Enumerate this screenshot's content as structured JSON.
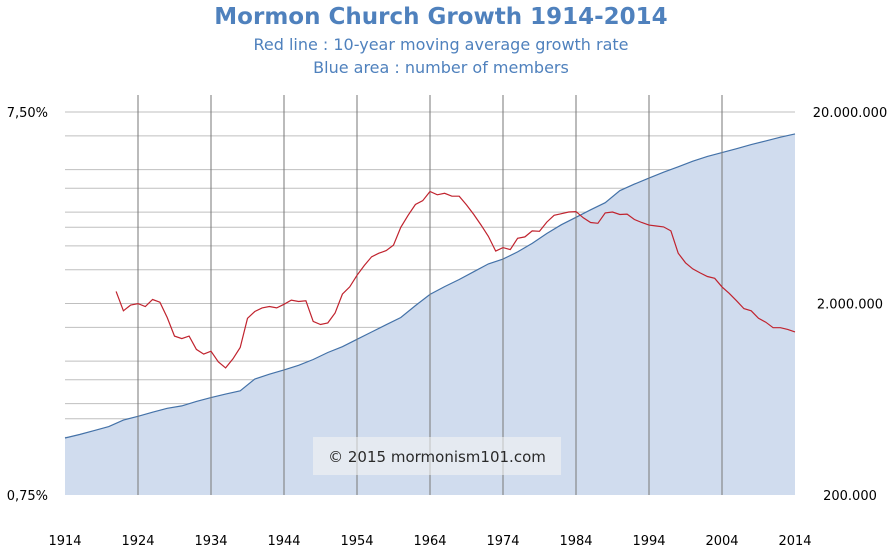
{
  "chart_data": {
    "type": "line",
    "title": "Mormon Church Growth 1914-2014",
    "subtitle_lines": [
      "Red line : 10-year moving average growth rate",
      "Blue area : number of members"
    ],
    "watermark": "© 2015 mormonism101.com",
    "x_range": [
      1914,
      2014
    ],
    "x_ticks": [
      1914,
      1924,
      1934,
      1944,
      1954,
      1964,
      1974,
      1984,
      1994,
      2004,
      2014
    ],
    "x_tick_labels": [
      "1914",
      "1924",
      "1934",
      "1944",
      "1954",
      "1964",
      "1974",
      "1984",
      "1994",
      "2004",
      "2014"
    ],
    "left_axis": {
      "scale": "log",
      "range": [
        0.75,
        7.5
      ],
      "tick_labels": [
        "7,50%",
        "0,75%"
      ]
    },
    "right_axis": {
      "scale": "log",
      "range": [
        200000,
        20000000
      ],
      "tick_labels": [
        "20.000.000",
        "2.000.000",
        "200.000"
      ]
    },
    "grid": true,
    "colors": {
      "area_fill": "#d0dcee",
      "area_line": "#4472a8",
      "rate_line": "#c0232e",
      "grid": "#bfbfbf",
      "vertical_grid": "#777777",
      "title": "#4f81bd"
    },
    "series": [
      {
        "name": "Red line : 10-year moving average growth rate",
        "axis": "left",
        "x": [
          1921,
          1922,
          1923,
          1924,
          1925,
          1926,
          1927,
          1928,
          1929,
          1930,
          1931,
          1932,
          1933,
          1934,
          1935,
          1936,
          1937,
          1938,
          1939,
          1940,
          1941,
          1942,
          1943,
          1944,
          1945,
          1946,
          1947,
          1948,
          1949,
          1950,
          1951,
          1952,
          1953,
          1954,
          1955,
          1956,
          1957,
          1958,
          1959,
          1960,
          1961,
          1962,
          1963,
          1964,
          1965,
          1966,
          1967,
          1968,
          1969,
          1970,
          1971,
          1972,
          1973,
          1974,
          1975,
          1976,
          1977,
          1978,
          1979,
          1980,
          1981,
          1982,
          1983,
          1984,
          1985,
          1986,
          1987,
          1988,
          1989,
          1990,
          1991,
          1992,
          1993,
          1994,
          1995,
          1996,
          1997,
          1998,
          1999,
          2000,
          2001,
          2002,
          2003,
          2004,
          2005,
          2006,
          2007,
          2008,
          2009,
          2010,
          2011,
          2012,
          2013,
          2014
        ],
        "y": [
          2.55,
          2.27,
          2.35,
          2.37,
          2.33,
          2.43,
          2.39,
          2.18,
          1.95,
          1.92,
          1.95,
          1.8,
          1.75,
          1.78,
          1.67,
          1.61,
          1.7,
          1.82,
          2.17,
          2.26,
          2.31,
          2.33,
          2.31,
          2.36,
          2.42,
          2.4,
          2.41,
          2.13,
          2.09,
          2.11,
          2.24,
          2.51,
          2.62,
          2.81,
          2.98,
          3.14,
          3.21,
          3.26,
          3.37,
          3.75,
          4.03,
          4.3,
          4.4,
          4.65,
          4.56,
          4.6,
          4.52,
          4.52,
          4.29,
          4.05,
          3.8,
          3.55,
          3.25,
          3.32,
          3.28,
          3.51,
          3.54,
          3.67,
          3.66,
          3.87,
          4.03,
          4.07,
          4.11,
          4.12,
          3.97,
          3.86,
          3.84,
          4.09,
          4.11,
          4.05,
          4.06,
          3.93,
          3.86,
          3.8,
          3.78,
          3.76,
          3.67,
          3.21,
          3.03,
          2.92,
          2.85,
          2.79,
          2.76,
          2.62,
          2.52,
          2.41,
          2.3,
          2.27,
          2.17,
          2.12,
          2.05,
          2.05,
          2.03,
          2.0
        ]
      },
      {
        "name": "Blue area : number of members",
        "axis": "right",
        "x": [
          1914,
          1916,
          1918,
          1920,
          1922,
          1924,
          1926,
          1928,
          1930,
          1932,
          1934,
          1936,
          1938,
          1940,
          1942,
          1944,
          1946,
          1948,
          1950,
          1952,
          1954,
          1956,
          1958,
          1960,
          1962,
          1964,
          1966,
          1968,
          1970,
          1972,
          1974,
          1976,
          1978,
          1980,
          1982,
          1984,
          1986,
          1988,
          1990,
          1992,
          1994,
          1996,
          1998,
          2000,
          2002,
          2004,
          2006,
          2008,
          2010,
          2012,
          2014
        ],
        "y": [
          397000,
          414000,
          434000,
          455000,
          492000,
          515000,
          541000,
          567000,
          584000,
          616000,
          645000,
          673000,
          700000,
          807000,
          855000,
          900000,
          951000,
          1020000,
          1110000,
          1190000,
          1300000,
          1420000,
          1550000,
          1690000,
          1950000,
          2230000,
          2450000,
          2670000,
          2930000,
          3220000,
          3410000,
          3720000,
          4120000,
          4640000,
          5160000,
          5640000,
          6170000,
          6720000,
          7760000,
          8400000,
          9030000,
          9700000,
          10350000,
          11070000,
          11720000,
          12280000,
          12870000,
          13510000,
          14130000,
          14780000,
          15370000
        ]
      }
    ]
  }
}
